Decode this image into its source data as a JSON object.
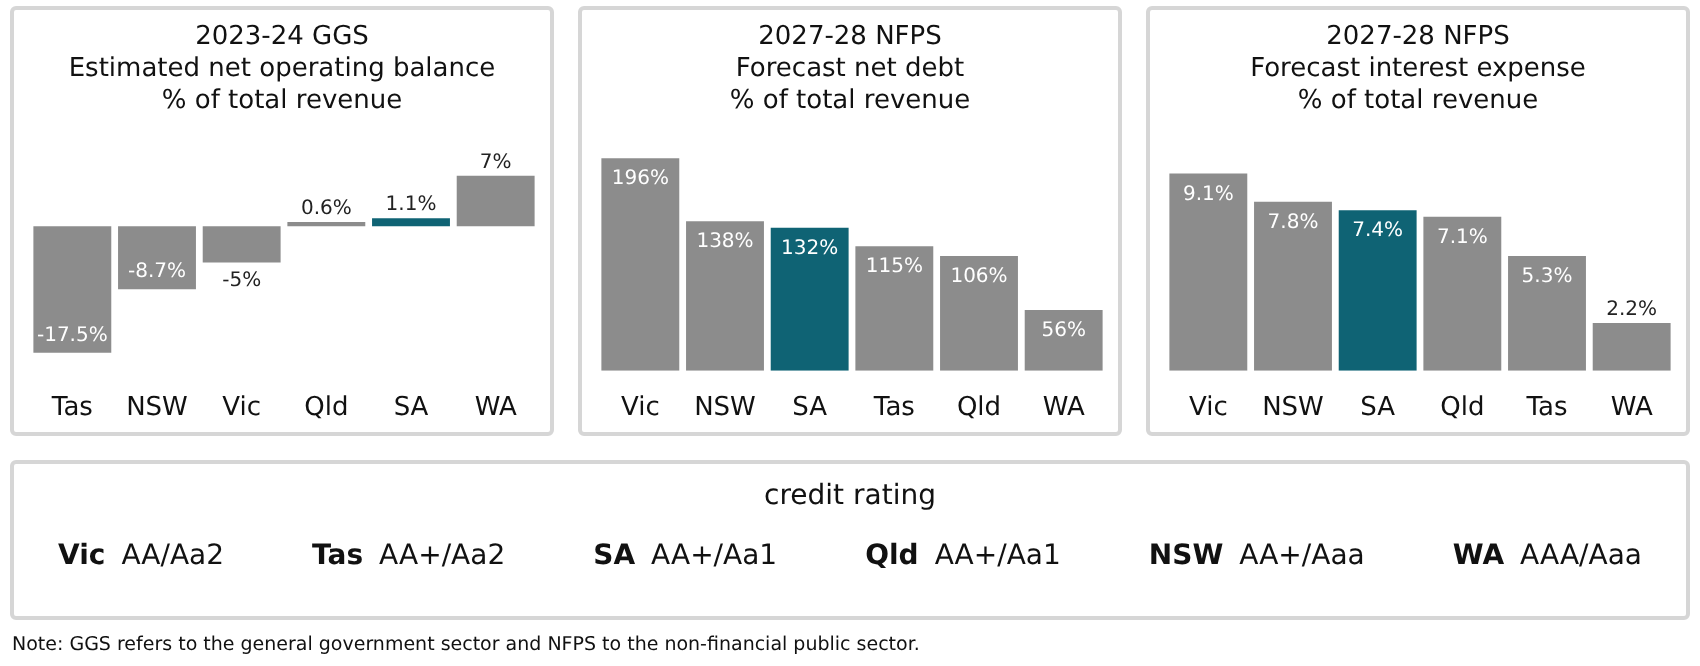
{
  "chart_data": [
    {
      "type": "bar",
      "title": "2023-24 GGS\nEstimated net operating balance\n% of total revenue",
      "categories": [
        "Tas",
        "NSW",
        "Vic",
        "Qld",
        "SA",
        "WA"
      ],
      "values": [
        -17.5,
        -8.7,
        -5,
        0.6,
        1.1,
        7
      ],
      "value_labels": [
        "-17.5%",
        "-8.7%",
        "-5%",
        "0.6%",
        "1.1%",
        "7%"
      ],
      "colors": [
        "#8c8c8c",
        "#8c8c8c",
        "#8c8c8c",
        "#8c8c8c",
        "#0f6374",
        "#8c8c8c"
      ]
    },
    {
      "type": "bar",
      "title": "2027-28 NFPS\nForecast net debt\n% of total revenue",
      "categories": [
        "Vic",
        "NSW",
        "SA",
        "Tas",
        "Qld",
        "WA"
      ],
      "values": [
        196,
        138,
        132,
        115,
        106,
        56
      ],
      "value_labels": [
        "196%",
        "138%",
        "132%",
        "115%",
        "106%",
        "56%"
      ],
      "colors": [
        "#8c8c8c",
        "#8c8c8c",
        "#0f6374",
        "#8c8c8c",
        "#8c8c8c",
        "#8c8c8c"
      ]
    },
    {
      "type": "bar",
      "title": "2027-28 NFPS\nForecast interest expense\n% of total revenue",
      "categories": [
        "Vic",
        "NSW",
        "SA",
        "Qld",
        "Tas",
        "WA"
      ],
      "values": [
        9.1,
        7.8,
        7.4,
        7.1,
        5.3,
        2.2
      ],
      "value_labels": [
        "9.1%",
        "7.8%",
        "7.4%",
        "7.1%",
        "5.3%",
        "2.2%"
      ],
      "colors": [
        "#8c8c8c",
        "#8c8c8c",
        "#0f6374",
        "#8c8c8c",
        "#8c8c8c",
        "#8c8c8c"
      ]
    },
    {
      "type": "other",
      "title": "credit rating",
      "annotations": [
        "Vic",
        "AA/Aa2",
        "Tas",
        "AA+/Aa2",
        "SA",
        "AA+/Aa1",
        "Qld",
        "AA+/Aa1",
        "NSW",
        "AA+/Aaa",
        "WA",
        "AAA/Aaa"
      ]
    },
    {
      "type": "other",
      "annotations": [
        "Note: GGS refers to the general government sector and NFPS to the non-financial public sector."
      ]
    }
  ]
}
